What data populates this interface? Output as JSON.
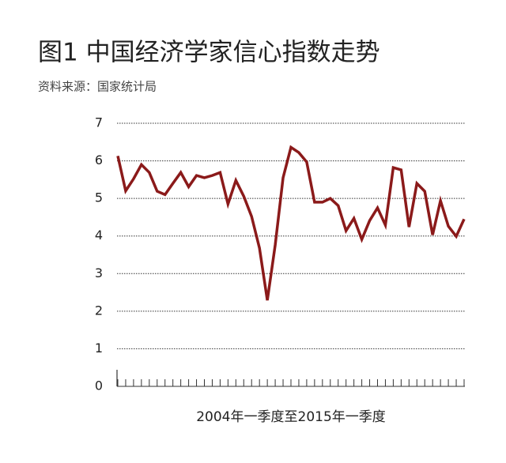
{
  "chart_data": {
    "type": "line",
    "title": "图1  中国经济学家信心指数走势",
    "subtitle": "资料来源：国家统计局",
    "x_label": "2004年一季度至2015年一季度",
    "categories": [
      null,
      null,
      null,
      null,
      null,
      null,
      null,
      null,
      null,
      null,
      null,
      null,
      null,
      null,
      null,
      null,
      null,
      null,
      null,
      null,
      null,
      null,
      null,
      null,
      null,
      null,
      null,
      null,
      null,
      null,
      null,
      null,
      null,
      null,
      null,
      null,
      null,
      null,
      null,
      null,
      null,
      null,
      null,
      null,
      null
    ],
    "series": [
      {
        "color": "#8b1a1a",
        "values": [
          6.13,
          5.2,
          5.52,
          5.9,
          5.69,
          5.19,
          5.1,
          5.4,
          5.69,
          5.31,
          5.61,
          5.55,
          5.61,
          5.69,
          4.85,
          5.48,
          5.06,
          4.52,
          3.68,
          2.29,
          3.76,
          5.55,
          6.36,
          6.22,
          5.97,
          4.9,
          4.9,
          5.0,
          4.81,
          4.14,
          4.47,
          3.91,
          4.41,
          4.75,
          4.29,
          5.82,
          5.76,
          4.24,
          5.4,
          5.19,
          4.03,
          4.94,
          4.26,
          3.99,
          4.45
        ]
      }
    ],
    "ylim": [
      0,
      7
    ],
    "yticks": [
      0,
      1,
      2,
      3,
      4,
      5,
      6,
      7
    ],
    "grid": true
  }
}
